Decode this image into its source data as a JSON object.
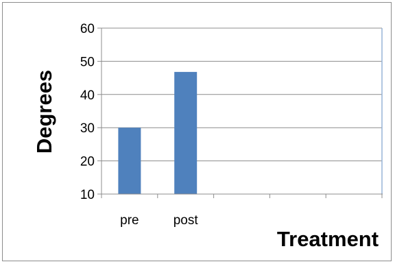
{
  "chart_data": {
    "type": "bar",
    "title": "",
    "xlabel": "Treatment",
    "ylabel": "Degrees",
    "categories": [
      "pre",
      "post",
      "",
      "",
      ""
    ],
    "values": [
      30,
      46.8,
      null,
      null,
      null
    ],
    "ylim": [
      10,
      60
    ],
    "yticks": [
      10,
      20,
      30,
      40,
      50,
      60
    ],
    "grid": true,
    "legend": "none",
    "colors": {
      "bar": "#4f81bd",
      "gridline": "#8c8c8c",
      "axis": "#8c8c8c",
      "right_border": "#95b3d7"
    }
  }
}
